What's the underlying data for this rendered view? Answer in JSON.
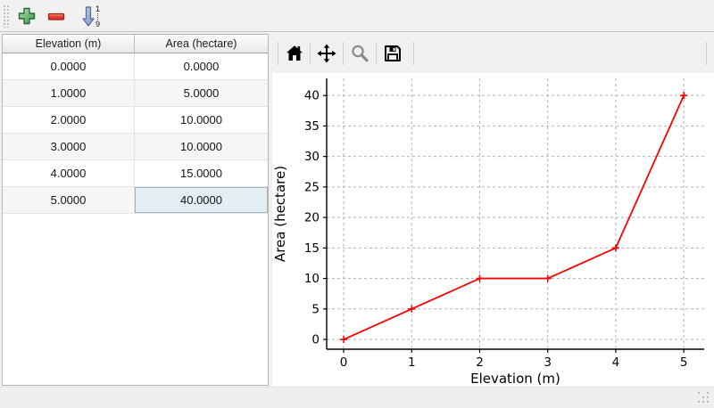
{
  "main_toolbar": {
    "sort_top_label": "1",
    "sort_bottom_label": "9",
    "buttons": [
      {
        "name": "add-row",
        "icon": "plus-icon"
      },
      {
        "name": "remove-row",
        "icon": "minus-icon"
      },
      {
        "name": "sort-rows",
        "icon": "sort-ascending-icon"
      }
    ]
  },
  "table": {
    "columns": [
      "Elevation (m)",
      "Area (hectare)"
    ],
    "rows": [
      [
        "0.0000",
        "0.0000"
      ],
      [
        "1.0000",
        "5.0000"
      ],
      [
        "2.0000",
        "10.0000"
      ],
      [
        "3.0000",
        "10.0000"
      ],
      [
        "4.0000",
        "15.0000"
      ],
      [
        "5.0000",
        "40.0000"
      ]
    ],
    "selected_cell": {
      "row": 5,
      "col": 1
    },
    "selection_color": "#e3edf4",
    "alt_row_color": "#f6f6f6"
  },
  "plot_toolbar": {
    "buttons": [
      {
        "name": "home",
        "icon": "home-icon"
      },
      {
        "name": "pan",
        "icon": "pan-icon"
      },
      {
        "name": "zoom",
        "icon": "magnifier-icon"
      },
      {
        "name": "save",
        "icon": "save-icon"
      }
    ]
  },
  "chart_data": {
    "type": "line",
    "x": [
      0,
      1,
      2,
      3,
      4,
      5
    ],
    "series": [
      {
        "name": "Area",
        "values": [
          0,
          5,
          10,
          10,
          15,
          40
        ],
        "color": "#ff0000",
        "marker": "plus"
      }
    ],
    "title": "",
    "xlabel": "Elevation (m)",
    "ylabel": "Area (hectare)",
    "xticks": [
      0,
      1,
      2,
      3,
      4,
      5
    ],
    "yticks": [
      0,
      5,
      10,
      15,
      20,
      25,
      30,
      35,
      40
    ],
    "xlim": [
      -0.25,
      5.3
    ],
    "ylim": [
      -1.6,
      42.8
    ],
    "grid": true,
    "grid_color": "#b3b3b3",
    "axis_color": "#000000",
    "background": "#ffffff",
    "legend": null
  }
}
